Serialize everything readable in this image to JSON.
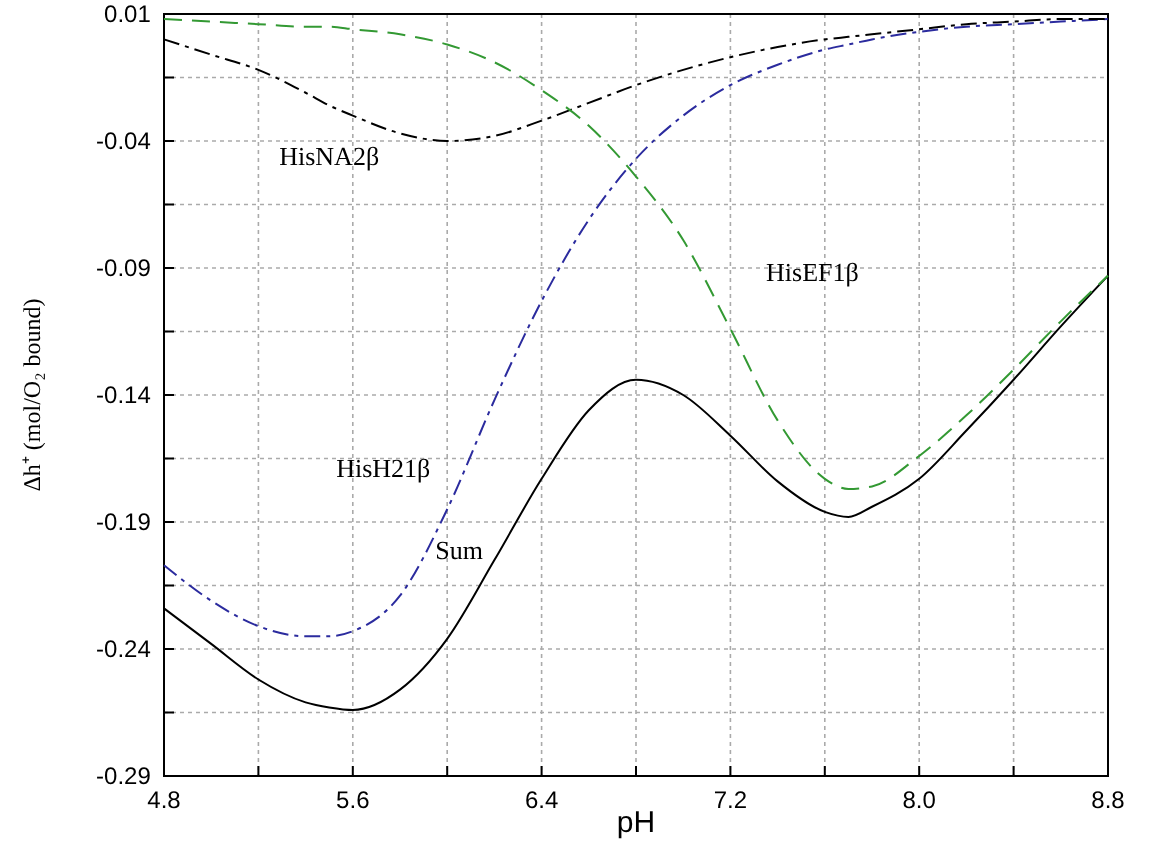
{
  "chart_data": {
    "type": "line",
    "xlabel": "pH",
    "ylabel": "Δh⁺ (mol/O₂ bound)",
    "xlim": [
      4.8,
      8.8
    ],
    "ylim": [
      -0.29,
      0.01
    ],
    "xticks": [
      {
        "value": 4.8,
        "label": "4.8"
      },
      {
        "value": 5.2,
        "label": null
      },
      {
        "value": 5.6,
        "label": "5.6"
      },
      {
        "value": 6.0,
        "label": null
      },
      {
        "value": 6.4,
        "label": "6.4"
      },
      {
        "value": 6.8,
        "label": null
      },
      {
        "value": 7.2,
        "label": "7.2"
      },
      {
        "value": 7.6,
        "label": null
      },
      {
        "value": 8.0,
        "label": "8.0"
      },
      {
        "value": 8.4,
        "label": null
      },
      {
        "value": 8.8,
        "label": "8.8"
      }
    ],
    "yticks": [
      0.01,
      {
        "value": -0.015,
        "label": null
      },
      -0.04,
      {
        "value": -0.065,
        "label": null
      },
      -0.09,
      {
        "value": -0.115,
        "label": null
      },
      -0.14,
      {
        "value": -0.165,
        "label": null
      },
      -0.19,
      {
        "value": -0.215,
        "label": null
      },
      -0.24,
      {
        "value": -0.265,
        "label": null
      },
      -0.29
    ],
    "grid": true,
    "marker": "none",
    "x": [
      4.8,
      5.0,
      5.2,
      5.4,
      5.5,
      5.6,
      5.8,
      6.0,
      6.2,
      6.4,
      6.6,
      6.8,
      7.0,
      7.2,
      7.4,
      7.6,
      7.7,
      7.8,
      8.0,
      8.2,
      8.4,
      8.6,
      8.8
    ],
    "series": [
      {
        "name": "Sum",
        "color": "#000000",
        "line_style": "solid",
        "values": [
          -0.224,
          -0.238,
          -0.252,
          -0.261,
          -0.263,
          -0.264,
          -0.256,
          -0.236,
          -0.205,
          -0.173,
          -0.146,
          -0.134,
          -0.14,
          -0.156,
          -0.174,
          -0.186,
          -0.188,
          -0.184,
          -0.173,
          -0.154,
          -0.134,
          -0.113,
          -0.093
        ]
      },
      {
        "name": "HisH21β",
        "color": "#2b2b9e",
        "line_style": "dashdot",
        "values": [
          -0.207,
          -0.221,
          -0.231,
          -0.235,
          -0.235,
          -0.233,
          -0.219,
          -0.185,
          -0.142,
          -0.103,
          -0.071,
          -0.047,
          -0.03,
          -0.018,
          -0.01,
          -0.004,
          -0.002,
          0.0,
          0.003,
          0.005,
          0.006,
          0.007,
          0.008
        ]
      },
      {
        "name": "HisNA2β",
        "color": "#000000",
        "line_style": "dashdot",
        "values": [
          0.0,
          -0.006,
          -0.012,
          -0.021,
          -0.026,
          -0.03,
          -0.037,
          -0.04,
          -0.038,
          -0.032,
          -0.025,
          -0.018,
          -0.012,
          -0.007,
          -0.003,
          0.0,
          0.001,
          0.002,
          0.004,
          0.006,
          0.007,
          0.008,
          0.008
        ]
      },
      {
        "name": "HisEF1β",
        "color": "#339933",
        "line_style": "dashed",
        "values": [
          0.008,
          0.007,
          0.006,
          0.005,
          0.005,
          0.004,
          0.002,
          -0.002,
          -0.009,
          -0.02,
          -0.034,
          -0.054,
          -0.079,
          -0.114,
          -0.15,
          -0.173,
          -0.177,
          -0.176,
          -0.164,
          -0.148,
          -0.13,
          -0.111,
          -0.093
        ]
      }
    ]
  }
}
